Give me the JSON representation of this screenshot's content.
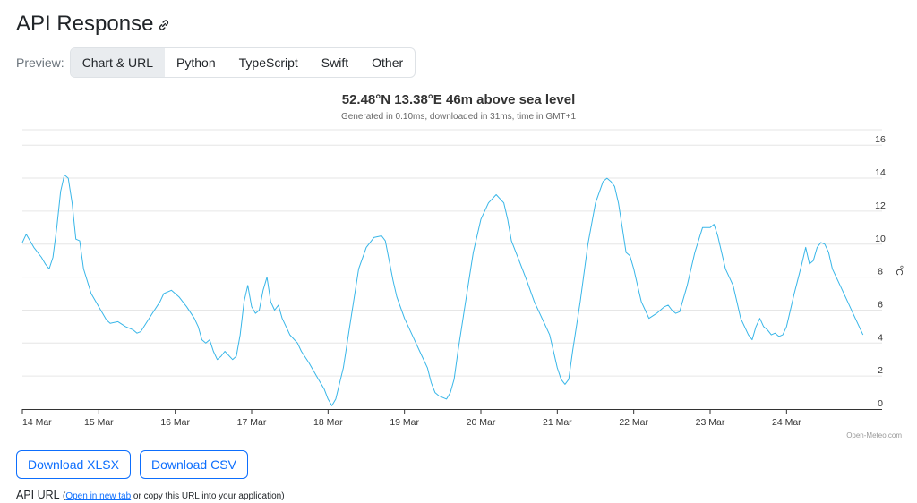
{
  "header": {
    "title": "API Response"
  },
  "preview": {
    "label": "Preview:",
    "tabs": [
      {
        "label": "Chart & URL",
        "active": true
      },
      {
        "label": "Python",
        "active": false
      },
      {
        "label": "TypeScript",
        "active": false
      },
      {
        "label": "Swift",
        "active": false
      },
      {
        "label": "Other",
        "active": false
      }
    ]
  },
  "chart_data": {
    "type": "line",
    "title": "52.48°N 13.38°E 46m above sea level",
    "subtitle": "Generated in 0.10ms, downloaded in 31ms, time in GMT+1",
    "xlabel": "",
    "ylabel": "°C",
    "x_tick_labels": [
      "14 Mar",
      "15 Mar",
      "16 Mar",
      "17 Mar",
      "18 Mar",
      "19 Mar",
      "20 Mar",
      "21 Mar",
      "22 Mar",
      "23 Mar",
      "24 Mar"
    ],
    "y_ticks": [
      0,
      2,
      4,
      6,
      8,
      10,
      12,
      14,
      16
    ],
    "ylim": [
      0,
      16.5
    ],
    "xlim_days": [
      0,
      11.25
    ],
    "grid": true,
    "legend": "none",
    "credit": "Open-Meteo.com",
    "line_color": "#38b6e8",
    "series": [
      {
        "name": "",
        "points": [
          [
            0,
            10.1
          ],
          [
            0.05,
            10.6
          ],
          [
            0.15,
            9.8
          ],
          [
            0.25,
            9.2
          ],
          [
            0.3,
            8.8
          ],
          [
            0.35,
            8.5
          ],
          [
            0.4,
            9.2
          ],
          [
            0.45,
            11.0
          ],
          [
            0.5,
            13.2
          ],
          [
            0.55,
            14.2
          ],
          [
            0.6,
            14.0
          ],
          [
            0.65,
            12.5
          ],
          [
            0.7,
            10.3
          ],
          [
            0.75,
            10.2
          ],
          [
            0.8,
            8.5
          ],
          [
            0.9,
            7.0
          ],
          [
            1.0,
            6.2
          ],
          [
            1.1,
            5.4
          ],
          [
            1.15,
            5.2
          ],
          [
            1.25,
            5.3
          ],
          [
            1.35,
            5.0
          ],
          [
            1.45,
            4.8
          ],
          [
            1.5,
            4.6
          ],
          [
            1.55,
            4.7
          ],
          [
            1.7,
            5.8
          ],
          [
            1.8,
            6.5
          ],
          [
            1.85,
            7.0
          ],
          [
            1.95,
            7.2
          ],
          [
            2.05,
            6.8
          ],
          [
            2.15,
            6.2
          ],
          [
            2.25,
            5.5
          ],
          [
            2.3,
            5.0
          ],
          [
            2.35,
            4.2
          ],
          [
            2.4,
            4.0
          ],
          [
            2.45,
            4.2
          ],
          [
            2.5,
            3.5
          ],
          [
            2.55,
            3.0
          ],
          [
            2.6,
            3.2
          ],
          [
            2.65,
            3.5
          ],
          [
            2.75,
            3.0
          ],
          [
            2.8,
            3.2
          ],
          [
            2.85,
            4.5
          ],
          [
            2.9,
            6.5
          ],
          [
            2.95,
            7.5
          ],
          [
            3.0,
            6.2
          ],
          [
            3.05,
            5.8
          ],
          [
            3.1,
            6.0
          ],
          [
            3.15,
            7.2
          ],
          [
            3.2,
            8.0
          ],
          [
            3.25,
            6.5
          ],
          [
            3.3,
            6.0
          ],
          [
            3.35,
            6.3
          ],
          [
            3.4,
            5.5
          ],
          [
            3.5,
            4.5
          ],
          [
            3.6,
            4.0
          ],
          [
            3.65,
            3.5
          ],
          [
            3.75,
            2.8
          ],
          [
            3.85,
            2.0
          ],
          [
            3.95,
            1.2
          ],
          [
            4.0,
            0.6
          ],
          [
            4.05,
            0.2
          ],
          [
            4.1,
            0.6
          ],
          [
            4.2,
            2.5
          ],
          [
            4.3,
            5.5
          ],
          [
            4.4,
            8.5
          ],
          [
            4.5,
            9.8
          ],
          [
            4.6,
            10.4
          ],
          [
            4.7,
            10.5
          ],
          [
            4.75,
            10.2
          ],
          [
            4.8,
            9.0
          ],
          [
            4.85,
            7.8
          ],
          [
            4.9,
            6.8
          ],
          [
            5.0,
            5.5
          ],
          [
            5.1,
            4.5
          ],
          [
            5.2,
            3.5
          ],
          [
            5.3,
            2.5
          ],
          [
            5.35,
            1.6
          ],
          [
            5.4,
            1.0
          ],
          [
            5.45,
            0.8
          ],
          [
            5.55,
            0.6
          ],
          [
            5.6,
            1.0
          ],
          [
            5.65,
            1.8
          ],
          [
            5.7,
            3.5
          ],
          [
            5.8,
            6.5
          ],
          [
            5.9,
            9.5
          ],
          [
            6.0,
            11.5
          ],
          [
            6.1,
            12.5
          ],
          [
            6.2,
            13.0
          ],
          [
            6.3,
            12.5
          ],
          [
            6.35,
            11.5
          ],
          [
            6.4,
            10.2
          ],
          [
            6.5,
            9.0
          ],
          [
            6.6,
            7.8
          ],
          [
            6.7,
            6.5
          ],
          [
            6.8,
            5.5
          ],
          [
            6.9,
            4.5
          ],
          [
            6.95,
            3.5
          ],
          [
            7.0,
            2.5
          ],
          [
            7.05,
            1.8
          ],
          [
            7.1,
            1.5
          ],
          [
            7.15,
            1.8
          ],
          [
            7.2,
            3.5
          ],
          [
            7.3,
            6.5
          ],
          [
            7.4,
            10.0
          ],
          [
            7.5,
            12.5
          ],
          [
            7.6,
            13.8
          ],
          [
            7.65,
            14.0
          ],
          [
            7.7,
            13.8
          ],
          [
            7.75,
            13.5
          ],
          [
            7.8,
            12.5
          ],
          [
            7.85,
            11.0
          ],
          [
            7.9,
            9.5
          ],
          [
            7.95,
            9.3
          ],
          [
            8.0,
            8.5
          ],
          [
            8.05,
            7.5
          ],
          [
            8.1,
            6.5
          ],
          [
            8.15,
            6.0
          ],
          [
            8.2,
            5.5
          ],
          [
            8.3,
            5.8
          ],
          [
            8.4,
            6.2
          ],
          [
            8.45,
            6.3
          ],
          [
            8.5,
            6.0
          ],
          [
            8.55,
            5.8
          ],
          [
            8.6,
            5.9
          ],
          [
            8.7,
            7.5
          ],
          [
            8.8,
            9.5
          ],
          [
            8.9,
            11.0
          ],
          [
            9.0,
            11.0
          ],
          [
            9.05,
            11.2
          ],
          [
            9.1,
            10.5
          ],
          [
            9.2,
            8.5
          ],
          [
            9.3,
            7.5
          ],
          [
            9.35,
            6.5
          ],
          [
            9.4,
            5.5
          ],
          [
            9.5,
            4.5
          ],
          [
            9.55,
            4.2
          ],
          [
            9.6,
            5.0
          ],
          [
            9.65,
            5.5
          ],
          [
            9.7,
            5.0
          ],
          [
            9.75,
            4.8
          ],
          [
            9.8,
            4.5
          ],
          [
            9.85,
            4.6
          ],
          [
            9.9,
            4.4
          ],
          [
            9.95,
            4.5
          ],
          [
            10.0,
            5.0
          ],
          [
            10.1,
            7.0
          ],
          [
            10.2,
            8.8
          ],
          [
            10.25,
            9.8
          ],
          [
            10.3,
            8.8
          ],
          [
            10.35,
            9.0
          ],
          [
            10.4,
            9.8
          ],
          [
            10.45,
            10.1
          ],
          [
            10.5,
            10.0
          ],
          [
            10.55,
            9.5
          ],
          [
            10.6,
            8.5
          ],
          [
            10.7,
            7.5
          ],
          [
            10.8,
            6.5
          ],
          [
            10.9,
            5.5
          ],
          [
            11.0,
            4.5
          ]
        ]
      }
    ]
  },
  "actions": {
    "download_xlsx": "Download XLSX",
    "download_csv": "Download CSV"
  },
  "api_url": {
    "label": "API URL",
    "open_paren": "(",
    "link_text": "Open in new tab",
    "suffix": " or copy this URL into your application)"
  }
}
